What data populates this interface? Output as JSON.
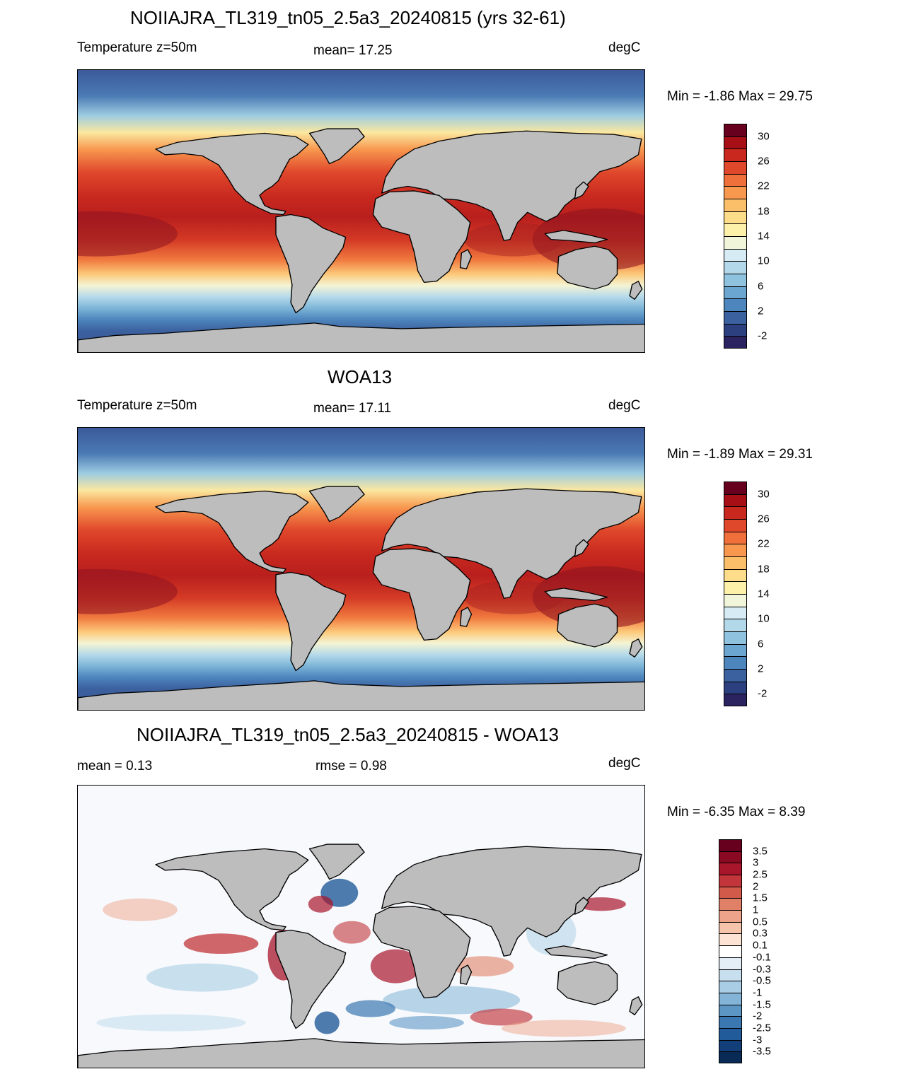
{
  "panels": [
    {
      "title": "NOIIAJRA_TL319_tn05_2.5a3_20240815 (yrs 32-61)",
      "left_label": "Temperature z=50m",
      "center_label": "mean=  17.25",
      "right_label": "degC",
      "minmax": "Min =  -1.86 Max =  29.75",
      "colorbar_ticks": [
        "30",
        "26",
        "22",
        "18",
        "14",
        "10",
        "6",
        "2",
        "-2"
      ],
      "colorbar_colors": [
        "#67001f",
        "#a50f15",
        "#c8281e",
        "#e0482c",
        "#f0703c",
        "#f8984f",
        "#fbbf69",
        "#fddc8a",
        "#fdf0a8",
        "#f1f6da",
        "#d6ebf3",
        "#b2d8ea",
        "#8ec2df",
        "#6aa6d0",
        "#4d85bd",
        "#3c619f",
        "#2c4080",
        "#2a235f"
      ]
    },
    {
      "title": "WOA13",
      "left_label": "Temperature z=50m",
      "center_label": "mean=  17.11",
      "right_label": "degC",
      "minmax": "Min =  -1.89 Max =  29.31",
      "colorbar_ticks": [
        "30",
        "26",
        "22",
        "18",
        "14",
        "10",
        "6",
        "2",
        "-2"
      ],
      "colorbar_colors": [
        "#67001f",
        "#a50f15",
        "#c8281e",
        "#e0482c",
        "#f0703c",
        "#f8984f",
        "#fbbf69",
        "#fddc8a",
        "#fdf0a8",
        "#f1f6da",
        "#d6ebf3",
        "#b2d8ea",
        "#8ec2df",
        "#6aa6d0",
        "#4d85bd",
        "#3c619f",
        "#2c4080",
        "#2a235f"
      ]
    },
    {
      "title": "NOIIAJRA_TL319_tn05_2.5a3_20240815 - WOA13",
      "left_label": "mean =   0.13",
      "center_label": "rmse =   0.98",
      "right_label": "degC",
      "minmax": "Min =  -6.35 Max =   8.39",
      "colorbar_ticks": [
        "3.5",
        "3",
        "2.5",
        "2",
        "1.5",
        "1",
        "0.5",
        "0.3",
        "0.1",
        "-0.1",
        "-0.3",
        "-0.5",
        "-1",
        "-1.5",
        "-2",
        "-2.5",
        "-3",
        "-3.5"
      ],
      "colorbar_colors": [
        "#67001f",
        "#8b0a23",
        "#a8162b",
        "#c2353a",
        "#d25a4a",
        "#e08066",
        "#eda389",
        "#f6c4ab",
        "#fce3d4",
        "#ffffff",
        "#e3eef7",
        "#c7dfee",
        "#a9cde4",
        "#83b4d7",
        "#5c96c5",
        "#3b78b1",
        "#225b9a",
        "#123f7a",
        "#082a55"
      ]
    }
  ]
}
